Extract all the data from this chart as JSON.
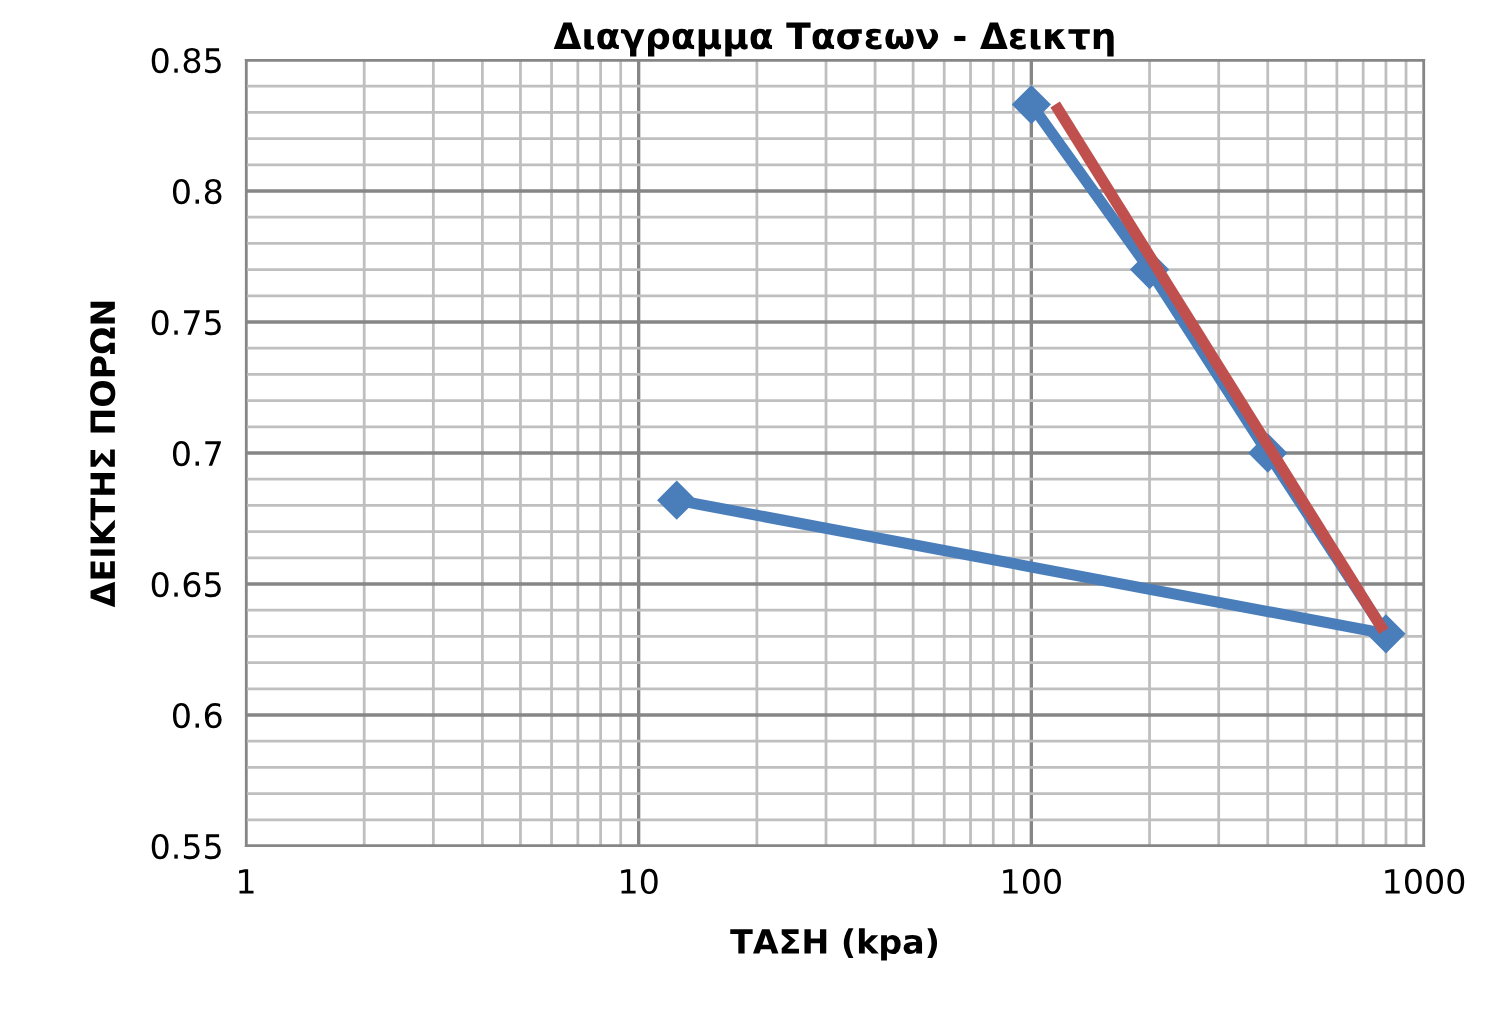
{
  "chart_data": {
    "type": "line",
    "title": "Διαγραμμα Τασεων - Δεικτη",
    "xlabel": "ΤΑΣΗ (kpa)",
    "ylabel": "ΔΕΙΚΤΗΣ ΠΟΡΩΝ",
    "log": "x",
    "grid": true,
    "legend": false,
    "xlim": [
      1,
      1000
    ],
    "xticks": [
      1,
      10,
      100,
      1000
    ],
    "ylim": [
      0.55,
      0.85
    ],
    "yticks": [
      0.55,
      0.6,
      0.65,
      0.7,
      0.75,
      0.8,
      0.85
    ],
    "series": [
      {
        "color": "#4a7ebb",
        "marker": "diamond",
        "x": [
          100,
          200,
          400,
          800,
          12.5
        ],
        "values": [
          0.833,
          0.77,
          0.7,
          0.631,
          0.682
        ]
      },
      {
        "color": "#c0504d",
        "marker": "none",
        "x": [
          115,
          790
        ],
        "values": [
          0.833,
          0.632
        ]
      }
    ]
  }
}
